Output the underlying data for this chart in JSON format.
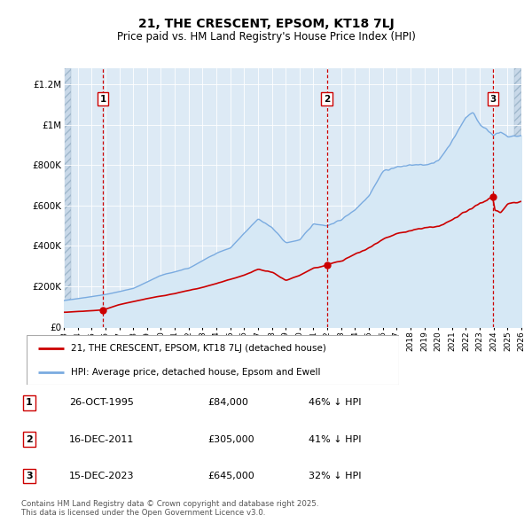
{
  "title": "21, THE CRESCENT, EPSOM, KT18 7LJ",
  "subtitle": "Price paid vs. HM Land Registry's House Price Index (HPI)",
  "ylabel_ticks": [
    "£0",
    "£200K",
    "£400K",
    "£600K",
    "£800K",
    "£1M",
    "£1.2M"
  ],
  "ytick_values": [
    0,
    200000,
    400000,
    600000,
    800000,
    1000000,
    1200000
  ],
  "ylim": [
    0,
    1280000
  ],
  "xmin": 1993,
  "xmax": 2026,
  "sale_dates_num": [
    1995.82,
    2011.97,
    2023.96
  ],
  "sale_prices": [
    84000,
    305000,
    645000
  ],
  "sale_labels": [
    "1",
    "2",
    "3"
  ],
  "sale_color": "#cc0000",
  "hpi_color": "#7aabe0",
  "hpi_fill_color": "#d6e8f5",
  "legend_entries": [
    "21, THE CRESCENT, EPSOM, KT18 7LJ (detached house)",
    "HPI: Average price, detached house, Epsom and Ewell"
  ],
  "table_rows": [
    [
      "1",
      "26-OCT-1995",
      "£84,000",
      "46% ↓ HPI"
    ],
    [
      "2",
      "16-DEC-2011",
      "£305,000",
      "41% ↓ HPI"
    ],
    [
      "3",
      "15-DEC-2023",
      "£645,000",
      "32% ↓ HPI"
    ]
  ],
  "footnote": "Contains HM Land Registry data © Crown copyright and database right 2025.\nThis data is licensed under the Open Government Licence v3.0.",
  "bg_color": "#ddeaf5",
  "hatch_color": "#c8d8e8",
  "grid_color": "#ffffff",
  "label_box_color": "#ffffff",
  "label_box_edge": "#cc0000",
  "vline_color": "#cc0000"
}
